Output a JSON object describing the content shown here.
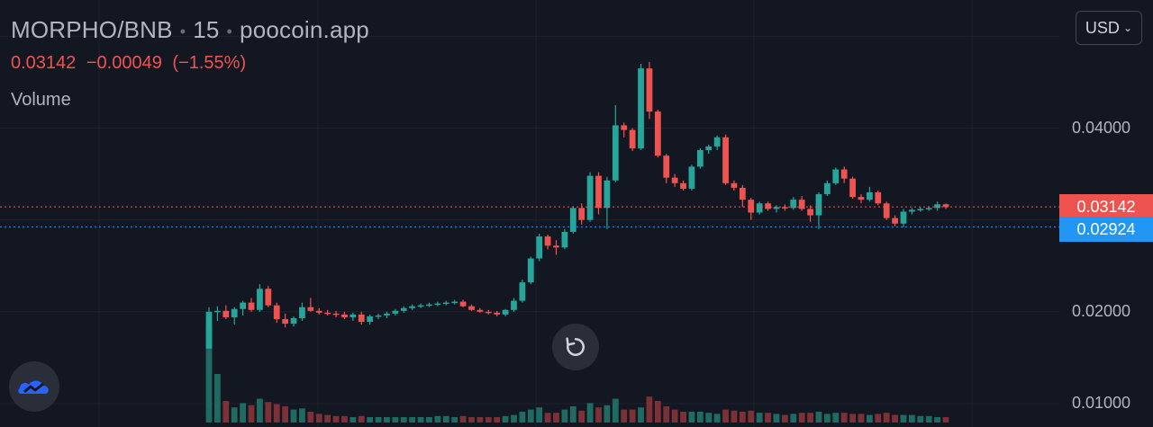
{
  "legend": {
    "symbol": "MORPHO/BNB",
    "interval": "15",
    "source": "poocoin.app",
    "last_price": "0.03142",
    "change": "−0.00049",
    "change_pct": "(−1.55%)",
    "volume_label": "Volume"
  },
  "currency": {
    "label": "USD"
  },
  "colors": {
    "background": "#131722",
    "grid": "#1e222d",
    "up": "#26a69a",
    "down": "#ef5350",
    "up_volume": "#1f6b64",
    "down_volume": "#7c3136",
    "last_price_line": "#ef5350",
    "ref_price_line": "#2196f3"
  },
  "icons": {
    "reset": "reset-icon",
    "logo": "tradingview-logo-icon",
    "currency_chevron": "chevron-down-icon"
  },
  "chart_data": {
    "type": "candlestick",
    "interval": "15",
    "y_ticks": [
      "0.04000",
      "0.02000",
      "0.01000"
    ],
    "y_tick_values": [
      0.04,
      0.02,
      0.01
    ],
    "ylim": [
      0.00745,
      0.05395
    ],
    "grid": true,
    "last_price": {
      "value": 0.03142,
      "label": "0.03142"
    },
    "ref_price": {
      "value": 0.02924,
      "label": "0.02924"
    },
    "candles": [
      [
        0.016,
        0.0205,
        0.016,
        0.02
      ],
      [
        0.02,
        0.0206,
        0.019,
        0.0201
      ],
      [
        0.0201,
        0.0207,
        0.0192,
        0.0194
      ],
      [
        0.0194,
        0.0205,
        0.0186,
        0.0203
      ],
      [
        0.0203,
        0.0212,
        0.0196,
        0.021
      ],
      [
        0.021,
        0.0215,
        0.02,
        0.0202
      ],
      [
        0.0202,
        0.023,
        0.02,
        0.0225
      ],
      [
        0.0225,
        0.0228,
        0.0205,
        0.0207
      ],
      [
        0.0207,
        0.021,
        0.0188,
        0.0192
      ],
      [
        0.0192,
        0.0198,
        0.0183,
        0.0187
      ],
      [
        0.0187,
        0.0195,
        0.0184,
        0.0193
      ],
      [
        0.0193,
        0.021,
        0.019,
        0.0205
      ],
      [
        0.0205,
        0.0215,
        0.02,
        0.0201
      ],
      [
        0.0201,
        0.0204,
        0.0197,
        0.0199
      ],
      [
        0.0199,
        0.0202,
        0.0196,
        0.0198
      ],
      [
        0.0198,
        0.0201,
        0.0194,
        0.0197
      ],
      [
        0.0197,
        0.02,
        0.0192,
        0.0194
      ],
      [
        0.0194,
        0.0199,
        0.019,
        0.0197
      ],
      [
        0.0197,
        0.02,
        0.0186,
        0.0189
      ],
      [
        0.0189,
        0.0197,
        0.0186,
        0.0195
      ],
      [
        0.0195,
        0.0198,
        0.0192,
        0.0196
      ],
      [
        0.0196,
        0.02,
        0.0193,
        0.0198
      ],
      [
        0.0198,
        0.0203,
        0.0196,
        0.0201
      ],
      [
        0.0201,
        0.0206,
        0.0199,
        0.0204
      ],
      [
        0.0204,
        0.0208,
        0.0202,
        0.0206
      ],
      [
        0.0206,
        0.0209,
        0.0204,
        0.0207
      ],
      [
        0.0207,
        0.021,
        0.0205,
        0.0208
      ],
      [
        0.0208,
        0.0211,
        0.0206,
        0.0209
      ],
      [
        0.0209,
        0.0212,
        0.0207,
        0.021
      ],
      [
        0.021,
        0.0213,
        0.0208,
        0.0211
      ],
      [
        0.0211,
        0.0213,
        0.0205,
        0.0206
      ],
      [
        0.0206,
        0.0208,
        0.0201,
        0.0202
      ],
      [
        0.0202,
        0.0204,
        0.0199,
        0.02
      ],
      [
        0.02,
        0.0202,
        0.0197,
        0.0199
      ],
      [
        0.0199,
        0.0201,
        0.0195,
        0.0197
      ],
      [
        0.0197,
        0.0203,
        0.0195,
        0.0202
      ],
      [
        0.0202,
        0.0215,
        0.02,
        0.0212
      ],
      [
        0.0212,
        0.0235,
        0.021,
        0.0232
      ],
      [
        0.0232,
        0.026,
        0.023,
        0.0258
      ],
      [
        0.0258,
        0.0285,
        0.0255,
        0.0282
      ],
      [
        0.0282,
        0.0284,
        0.0268,
        0.0272
      ],
      [
        0.0272,
        0.0278,
        0.0262,
        0.027
      ],
      [
        0.027,
        0.029,
        0.0268,
        0.0287
      ],
      [
        0.0287,
        0.0315,
        0.0285,
        0.0313
      ],
      [
        0.0313,
        0.0318,
        0.0295,
        0.03
      ],
      [
        0.03,
        0.0352,
        0.0298,
        0.0348
      ],
      [
        0.0348,
        0.0352,
        0.0306,
        0.0313
      ],
      [
        0.0313,
        0.0347,
        0.029,
        0.0343
      ],
      [
        0.0343,
        0.0425,
        0.0341,
        0.0403
      ],
      [
        0.0403,
        0.0406,
        0.039,
        0.0398
      ],
      [
        0.0398,
        0.04,
        0.0375,
        0.0378
      ],
      [
        0.0378,
        0.047,
        0.0376,
        0.0465
      ],
      [
        0.0465,
        0.0472,
        0.041,
        0.0418
      ],
      [
        0.0418,
        0.042,
        0.0368,
        0.037
      ],
      [
        0.037,
        0.0372,
        0.034,
        0.0346
      ],
      [
        0.0346,
        0.035,
        0.0336,
        0.034
      ],
      [
        0.034,
        0.0343,
        0.0332,
        0.0334
      ],
      [
        0.0334,
        0.036,
        0.0332,
        0.0358
      ],
      [
        0.0358,
        0.0378,
        0.0356,
        0.0376
      ],
      [
        0.0376,
        0.0382,
        0.0372,
        0.038
      ],
      [
        0.038,
        0.0392,
        0.0376,
        0.039
      ],
      [
        0.039,
        0.0393,
        0.0338,
        0.034
      ],
      [
        0.034,
        0.0343,
        0.0332,
        0.0335
      ],
      [
        0.0335,
        0.0338,
        0.0314,
        0.0322
      ],
      [
        0.0322,
        0.0324,
        0.03,
        0.0308
      ],
      [
        0.0308,
        0.032,
        0.0306,
        0.0318
      ],
      [
        0.0318,
        0.032,
        0.031,
        0.0312
      ],
      [
        0.0312,
        0.0316,
        0.0308,
        0.0314
      ],
      [
        0.0314,
        0.0317,
        0.031,
        0.0313
      ],
      [
        0.0313,
        0.0325,
        0.0311,
        0.0322
      ],
      [
        0.0322,
        0.0326,
        0.031,
        0.0312
      ],
      [
        0.0312,
        0.0316,
        0.0298,
        0.0305
      ],
      [
        0.0305,
        0.033,
        0.029,
        0.0328
      ],
      [
        0.0328,
        0.0343,
        0.0326,
        0.034
      ],
      [
        0.034,
        0.0357,
        0.0338,
        0.0355
      ],
      [
        0.0355,
        0.0358,
        0.034,
        0.0345
      ],
      [
        0.0345,
        0.0347,
        0.0323,
        0.0325
      ],
      [
        0.0325,
        0.0328,
        0.0318,
        0.0322
      ],
      [
        0.0322,
        0.0336,
        0.032,
        0.033
      ],
      [
        0.033,
        0.0332,
        0.0316,
        0.0318
      ],
      [
        0.0318,
        0.032,
        0.03,
        0.0302
      ],
      [
        0.0302,
        0.0305,
        0.0293,
        0.0296
      ],
      [
        0.0296,
        0.0312,
        0.0292,
        0.0309
      ],
      [
        0.0309,
        0.0313,
        0.0306,
        0.0311
      ],
      [
        0.0311,
        0.0314,
        0.0309,
        0.0312
      ],
      [
        0.0312,
        0.0315,
        0.031,
        0.0313
      ],
      [
        0.0313,
        0.032,
        0.031,
        0.0317
      ],
      [
        0.0317,
        0.0318,
        0.0312,
        0.0314
      ]
    ],
    "volumes": [
      0.9,
      0.45,
      0.2,
      0.14,
      0.18,
      0.16,
      0.22,
      0.19,
      0.17,
      0.15,
      0.12,
      0.13,
      0.1,
      0.08,
      0.07,
      0.06,
      0.06,
      0.05,
      0.06,
      0.05,
      0.05,
      0.05,
      0.05,
      0.05,
      0.05,
      0.05,
      0.05,
      0.06,
      0.06,
      0.05,
      0.06,
      0.05,
      0.05,
      0.05,
      0.05,
      0.06,
      0.07,
      0.1,
      0.12,
      0.14,
      0.09,
      0.09,
      0.12,
      0.15,
      0.11,
      0.18,
      0.14,
      0.16,
      0.22,
      0.12,
      0.12,
      0.14,
      0.24,
      0.2,
      0.15,
      0.12,
      0.1,
      0.1,
      0.1,
      0.09,
      0.08,
      0.12,
      0.11,
      0.1,
      0.11,
      0.09,
      0.09,
      0.08,
      0.07,
      0.08,
      0.09,
      0.09,
      0.1,
      0.08,
      0.09,
      0.09,
      0.08,
      0.08,
      0.07,
      0.08,
      0.09,
      0.07,
      0.07,
      0.07,
      0.06,
      0.06,
      0.05,
      0.05
    ]
  }
}
